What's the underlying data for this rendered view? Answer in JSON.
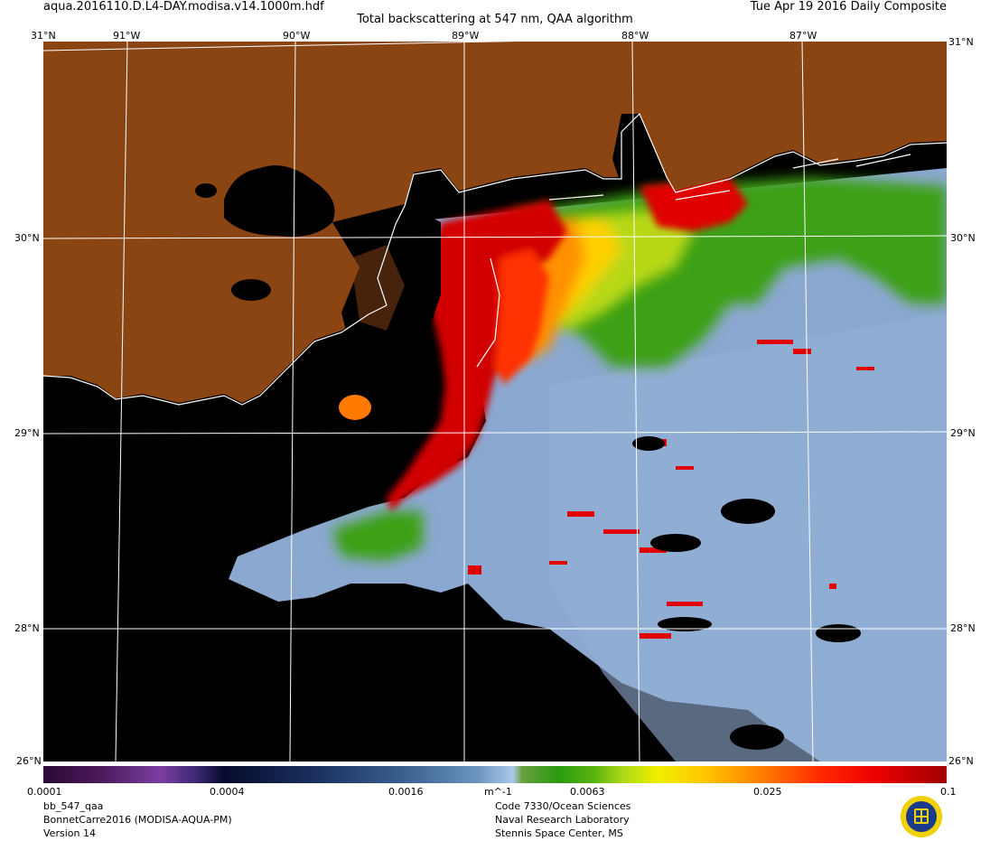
{
  "header": {
    "filename": "aqua.2016110.D.L4-DAY.modisa.v14.1000m.hdf",
    "title": "Total backscattering at 547 nm, QAA algorithm",
    "date": "Tue Apr 19 2016 Daily Composite"
  },
  "axes": {
    "top_lon_labels": [
      "91°W",
      "90°W",
      "89°W",
      "88°W",
      "87°W"
    ],
    "corner_top_left": "31°N",
    "corner_top_right": "31°N",
    "lat_labels": [
      "30°N",
      "29°N",
      "28°N"
    ],
    "corner_bottom_left": "26°N",
    "corner_bottom_right": "26°N"
  },
  "colorbar": {
    "labels": [
      "0.0001",
      "0.0004",
      "0.0016",
      "m^-1",
      "0.0063",
      "0.025",
      "0.1"
    ],
    "scale": "log",
    "min": 0.0001,
    "max": 0.1
  },
  "footer": {
    "left": [
      "bb_547_qaa",
      "BonnetCarre2016 (MODISA-AQUA-PM)",
      "Version 14"
    ],
    "right": [
      "Code 7330/Ocean Sciences",
      "Naval Research Laboratory",
      "Stennis Space Center, MS"
    ]
  },
  "colors": {
    "land": "#8b4513",
    "no_data": "#000000",
    "ocean_clear": "#8aa8d0",
    "turbid_high": "#d20000",
    "turbid_mid": "#ff9000",
    "turbid_low": "#3ca012",
    "coastline": "#ffffff"
  }
}
